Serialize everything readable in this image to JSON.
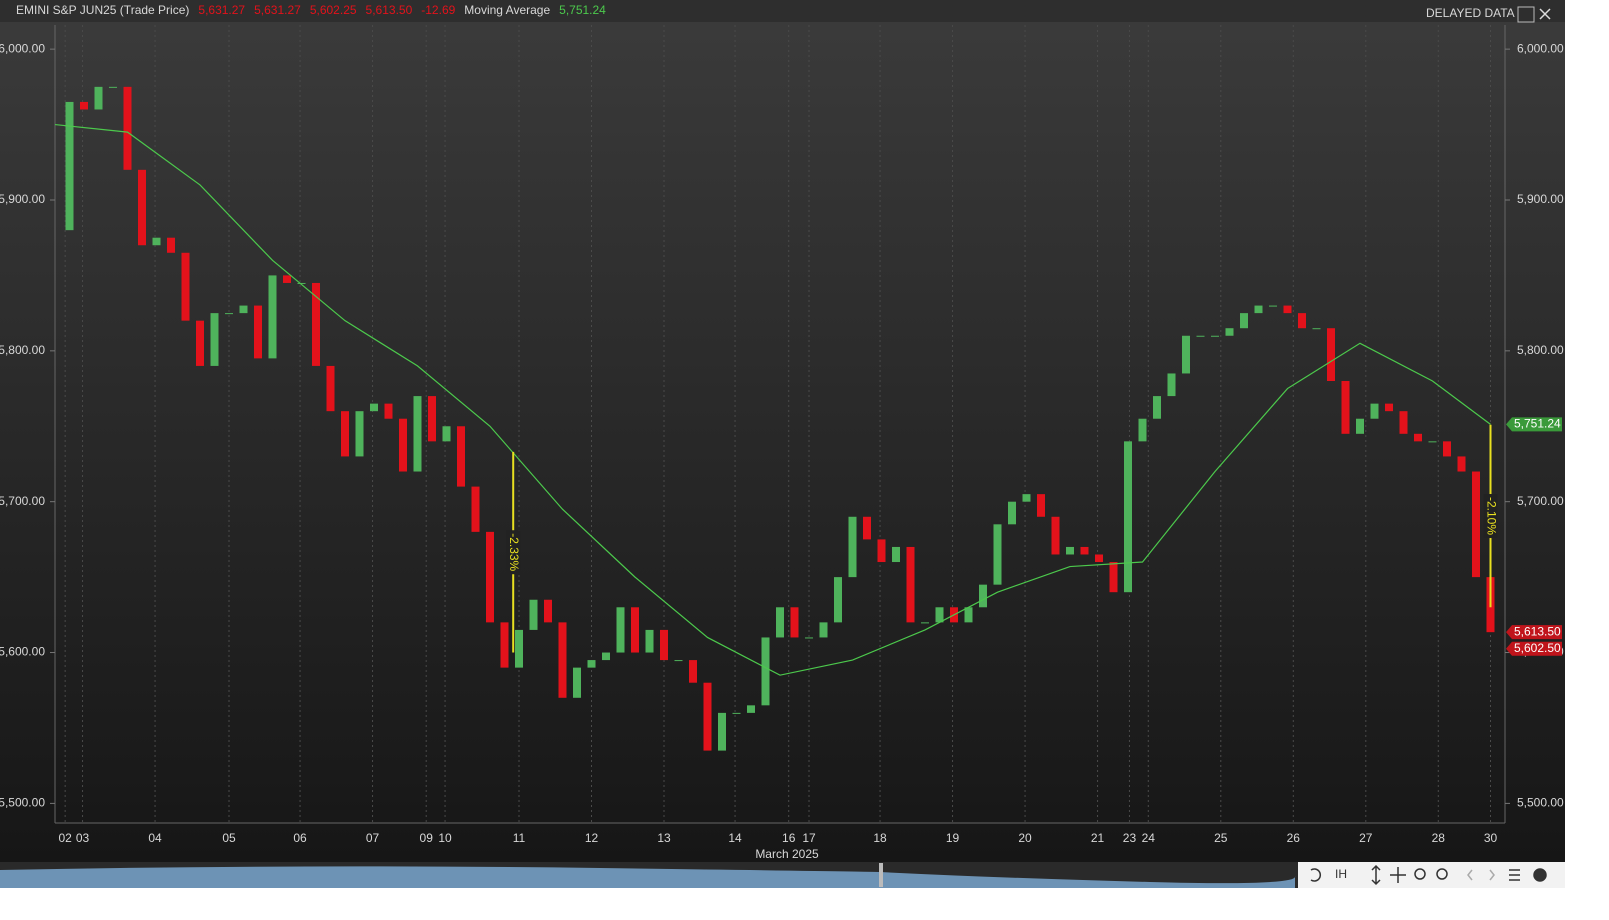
{
  "header": {
    "instrument": "EMINI S&P JUN25 (Trade Price)",
    "values": [
      "5,631.27",
      "5,631.27",
      "5,602.25",
      "5,613.50",
      "-12.69"
    ],
    "indicator_value": "5,751.24",
    "status": "DELAYED DATA"
  },
  "toolbar": {
    "mode": "IH"
  },
  "chart_data": {
    "type": "candlestick",
    "xlabel": "March 2025",
    "xlim": [
      0,
      100
    ],
    "ylim": [
      5487,
      6016
    ],
    "xticks": [
      {
        "value": 0.7,
        "label": "02"
      },
      {
        "value": 1.9,
        "label": "03"
      },
      {
        "value": 6.9,
        "label": "04"
      },
      {
        "value": 12.0,
        "label": "05"
      },
      {
        "value": 16.9,
        "label": "06"
      },
      {
        "value": 21.9,
        "label": "07"
      },
      {
        "value": 25.6,
        "label": "09"
      },
      {
        "value": 26.9,
        "label": "10"
      },
      {
        "value": 32.0,
        "label": "11"
      },
      {
        "value": 37.0,
        "label": "12"
      },
      {
        "value": 42.0,
        "label": "13"
      },
      {
        "value": 46.9,
        "label": "14"
      },
      {
        "value": 50.6,
        "label": "16"
      },
      {
        "value": 52.0,
        "label": "17"
      },
      {
        "value": 56.9,
        "label": "18"
      },
      {
        "value": 61.9,
        "label": "19"
      },
      {
        "value": 66.9,
        "label": "20"
      },
      {
        "value": 71.9,
        "label": "21"
      },
      {
        "value": 74.1,
        "label": "23"
      },
      {
        "value": 75.4,
        "label": "24"
      },
      {
        "value": 80.4,
        "label": "25"
      },
      {
        "value": 85.4,
        "label": "26"
      },
      {
        "value": 90.4,
        "label": "27"
      },
      {
        "value": 95.4,
        "label": "28"
      },
      {
        "value": 99.0,
        "label": "30"
      }
    ],
    "yticks": [
      {
        "value": 5500,
        "label": "5,500.00"
      },
      {
        "value": 5600,
        "label": "5,600.00"
      },
      {
        "value": 5700,
        "label": "5,700.00"
      },
      {
        "value": 5800,
        "label": "5,800.00"
      },
      {
        "value": 5900,
        "label": "5,900.00"
      },
      {
        "value": 6000,
        "label": "6,000.00"
      }
    ],
    "grid": true,
    "up_color": "#4fb35c",
    "down_color": "#e3121b",
    "series": [
      {
        "x": [
          0,
          1,
          2,
          3,
          4,
          5,
          6,
          7,
          8,
          9,
          10,
          11,
          12,
          13,
          14,
          15,
          16,
          17,
          18,
          19,
          20,
          21,
          22,
          23,
          24,
          25,
          26,
          27,
          28,
          29,
          30,
          31,
          32,
          33,
          34,
          35,
          36,
          37,
          38,
          39,
          40,
          41,
          42,
          43,
          44,
          45,
          46,
          47,
          48,
          49,
          50,
          51,
          52,
          53,
          54,
          55,
          56,
          57,
          58,
          59,
          60,
          61,
          62,
          63,
          64,
          65,
          66,
          67,
          68,
          69,
          70,
          71,
          72,
          73,
          74,
          75,
          76,
          77,
          78,
          79,
          80,
          81,
          82,
          83,
          84,
          85,
          86,
          87,
          88,
          89,
          90,
          91,
          92,
          93,
          94,
          95,
          96,
          97,
          98,
          99
        ],
        "values": [
          5880,
          5965,
          5960,
          5975,
          5975,
          5920,
          5870,
          5875,
          5865,
          5820,
          5790,
          5825,
          5825,
          5830,
          5795,
          5850,
          5845,
          5845,
          5790,
          5760,
          5730,
          5760,
          5765,
          5755,
          5720,
          5770,
          5740,
          5750,
          5710,
          5680,
          5620,
          5590,
          5615,
          5635,
          5620,
          5570,
          5590,
          5595,
          5600,
          5630,
          5600,
          5615,
          5595,
          5595,
          5580,
          5535,
          5560,
          5560,
          5565,
          5610,
          5630,
          5610,
          5610,
          5620,
          5650,
          5690,
          5675,
          5660,
          5670,
          5620,
          5620,
          5630,
          5620,
          5630,
          5645,
          5685,
          5700,
          5705,
          5690,
          5665,
          5670,
          5665,
          5660,
          5640,
          5740,
          5755,
          5770,
          5785,
          5810,
          5810,
          5810,
          5815,
          5825,
          5830,
          5830,
          5825,
          5815,
          5815,
          5780,
          5745,
          5755,
          5765,
          5760,
          5745,
          5740,
          5740,
          5730,
          5720,
          5650,
          5613.5
        ]
      },
      {
        "name": "Moving Average",
        "type": "line",
        "color": "#4cc94c",
        "x": [
          0,
          5,
          10,
          15,
          20,
          25,
          30,
          35,
          40,
          45,
          50,
          55,
          60,
          65,
          70,
          75,
          80,
          85,
          90,
          95,
          99
        ],
        "values": [
          5950,
          5945,
          5910,
          5860,
          5820,
          5790,
          5750,
          5695,
          5650,
          5610,
          5585,
          5595,
          5615,
          5640,
          5657,
          5660,
          5720,
          5775,
          5805,
          5780,
          5751.24
        ]
      }
    ],
    "annotations": [
      {
        "label": "-2.33%",
        "x": 31.6,
        "from": 5600,
        "to": 5733,
        "color": "#e8e020"
      },
      {
        "label": "-2.10%",
        "x": 99.0,
        "from": 5630,
        "to": 5751,
        "color": "#e8e020"
      }
    ],
    "price_tags": [
      {
        "value": 5751.24,
        "label": "5,751.24",
        "color": "#3a9a3a"
      },
      {
        "value": 5613.5,
        "label": "5,613.50",
        "color": "#c0141b"
      },
      {
        "value": 5602.5,
        "label": "5,602.50",
        "color": "#c0141b"
      }
    ]
  }
}
